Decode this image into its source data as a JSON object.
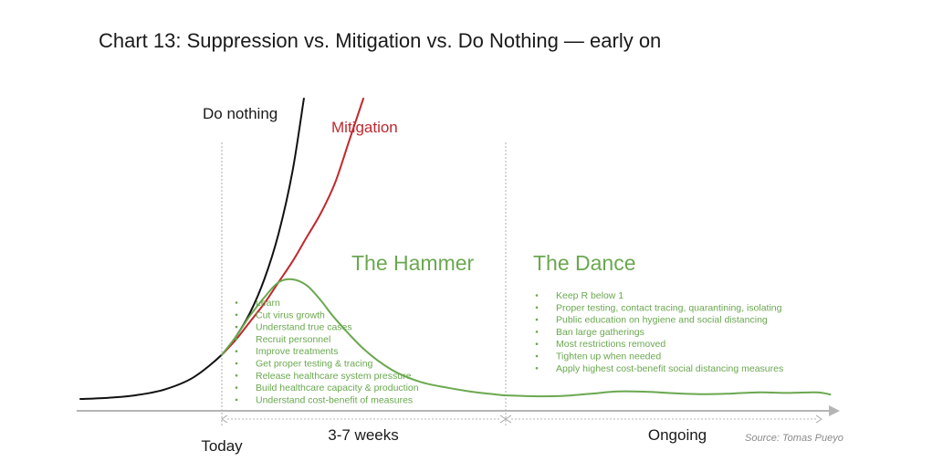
{
  "chart_data": {
    "type": "line",
    "title": "Chart 13: Suppression vs. Mitigation vs. Do Nothing — early on",
    "xlabel": "",
    "ylabel": "",
    "x_ticks": [
      "Today",
      "3-7 weeks",
      "Ongoing"
    ],
    "series": [
      {
        "name": "Do nothing",
        "color": "#111111",
        "x": [
          -5,
          -4,
          -3,
          -2,
          -1,
          0,
          0.5,
          1,
          1.5,
          2,
          2.5,
          2.9
        ],
        "y": [
          0.3,
          0.7,
          1.6,
          3.5,
          7.5,
          15,
          21,
          29,
          40,
          55,
          76,
          100
        ]
      },
      {
        "name": "Mitigation",
        "color": "#c0282d",
        "x": [
          0,
          0.5,
          1,
          1.5,
          2,
          2.5,
          3,
          3.5,
          4,
          4.5,
          5
        ],
        "y": [
          15,
          20,
          26,
          32,
          39,
          46,
          54,
          62,
          72,
          86,
          100
        ]
      },
      {
        "name": "The Hammer",
        "color": "#6aa84f",
        "x": [
          0,
          0.5,
          1,
          1.5,
          2,
          2.5,
          3,
          3.5,
          4,
          5,
          6,
          7,
          8,
          9,
          10
        ],
        "y": [
          15,
          21,
          28,
          34,
          39,
          40,
          38,
          33,
          27,
          17,
          10,
          6,
          4,
          2.5,
          1.5
        ]
      },
      {
        "name": "The Dance",
        "color": "#6aa84f",
        "x": [
          10,
          11,
          12,
          13,
          14,
          15,
          16,
          17,
          18,
          19,
          20,
          21,
          21.5
        ],
        "y": [
          1.5,
          1.2,
          1.3,
          2,
          2.8,
          2.7,
          2.2,
          1.9,
          2.1,
          2.5,
          2.3,
          2.5,
          1.8
        ]
      }
    ],
    "phases": [
      {
        "title": "The Hammer",
        "bullets": [
          "Learn",
          "Cut virus growth",
          "Understand true cases",
          "Recruit personnel",
          "Improve treatments",
          "Get proper testing & tracing",
          "Release healthcare system pressure",
          "Build healthcare capacity & production",
          "Understand cost-benefit of measures"
        ]
      },
      {
        "title": "The Dance",
        "bullets": [
          "Keep R below 1",
          "Proper testing, contact tracing, quarantining, isolating",
          "Public education on hygiene and social distancing",
          "Ban large gatherings",
          "Most restrictions removed",
          "Tighten up when needed",
          "Apply highest cost-benefit social distancing measures"
        ]
      }
    ],
    "source": "Source: Tomas Pueyo",
    "legend": "none",
    "grid": false
  }
}
